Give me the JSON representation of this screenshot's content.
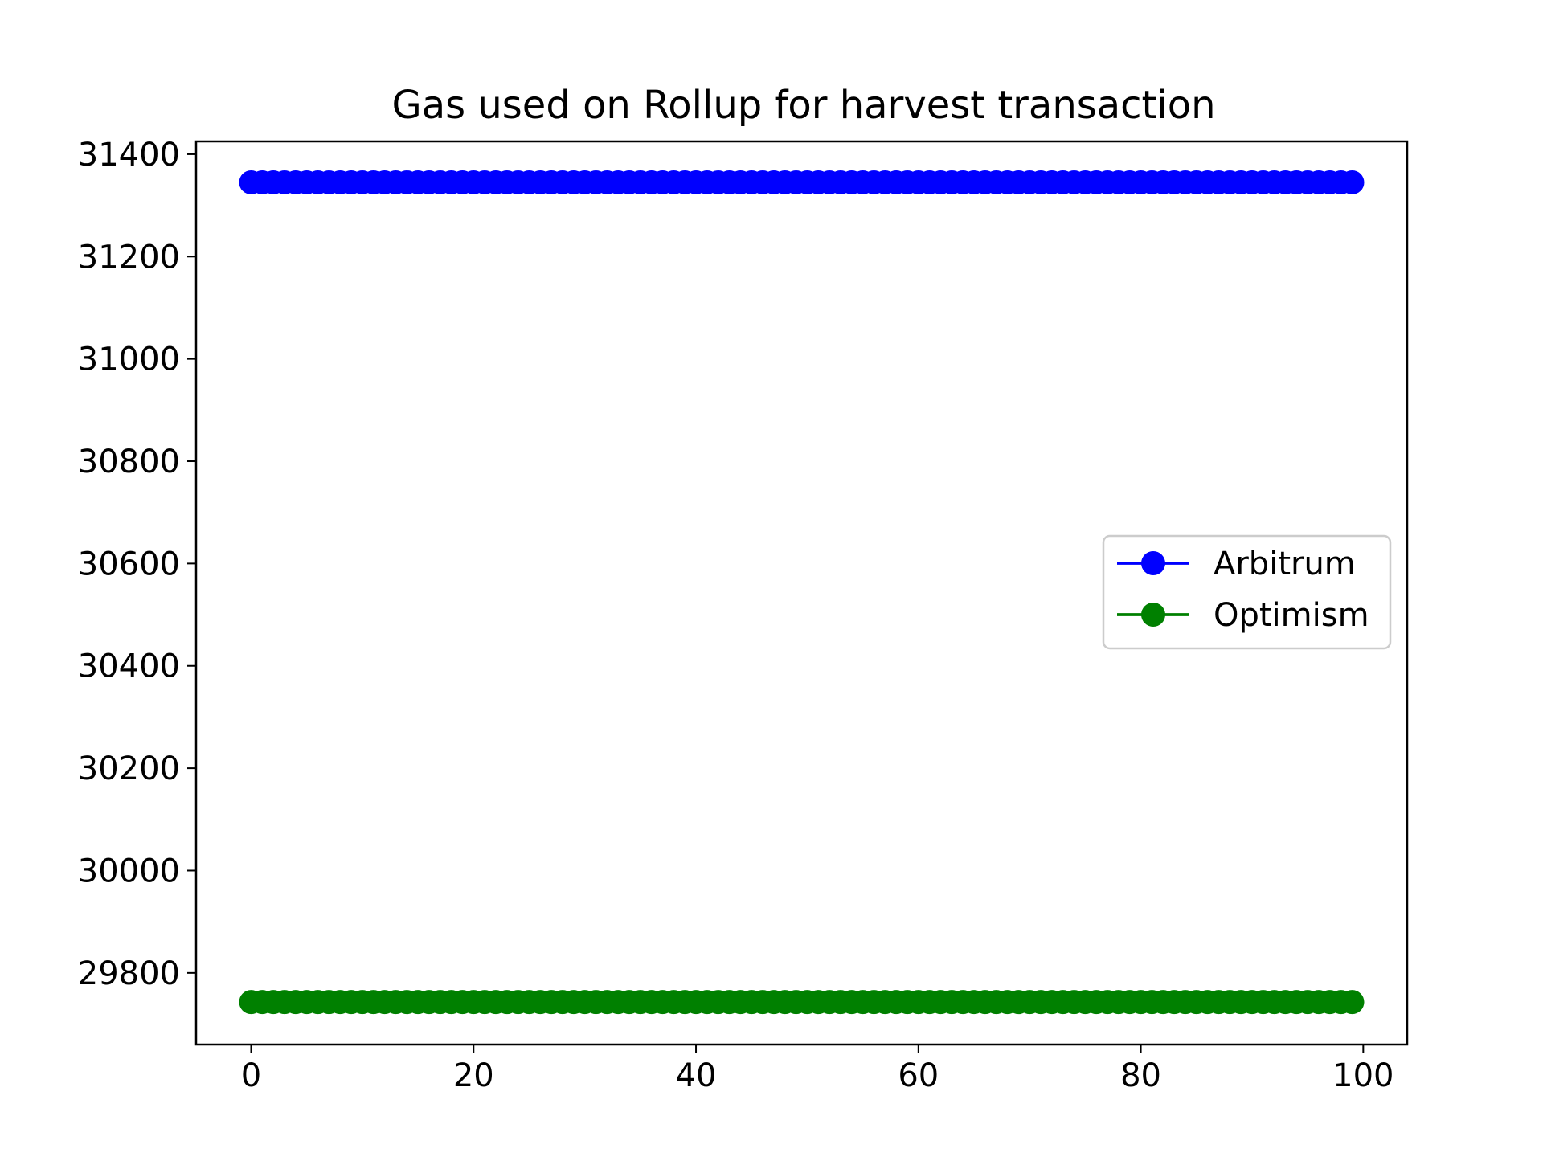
{
  "chart_data": {
    "type": "line",
    "title": "Gas used on Rollup for harvest transaction",
    "xlabel": "",
    "ylabel": "",
    "xlim": [
      -4.95,
      103.95
    ],
    "ylim": [
      29660,
      31425
    ],
    "x_ticks": [
      0,
      20,
      40,
      60,
      80,
      100
    ],
    "y_ticks": [
      29800,
      30000,
      30200,
      30400,
      30600,
      30800,
      31000,
      31200,
      31400
    ],
    "x_start": 0,
    "x_end": 99,
    "series": [
      {
        "name": "Arbitrum",
        "color": "#0000ff",
        "marker": "circle",
        "constant_value": 31345
      },
      {
        "name": "Optimism",
        "color": "#008000",
        "marker": "circle",
        "constant_value": 29743
      }
    ],
    "legend_position": "center-right",
    "grid": false
  }
}
